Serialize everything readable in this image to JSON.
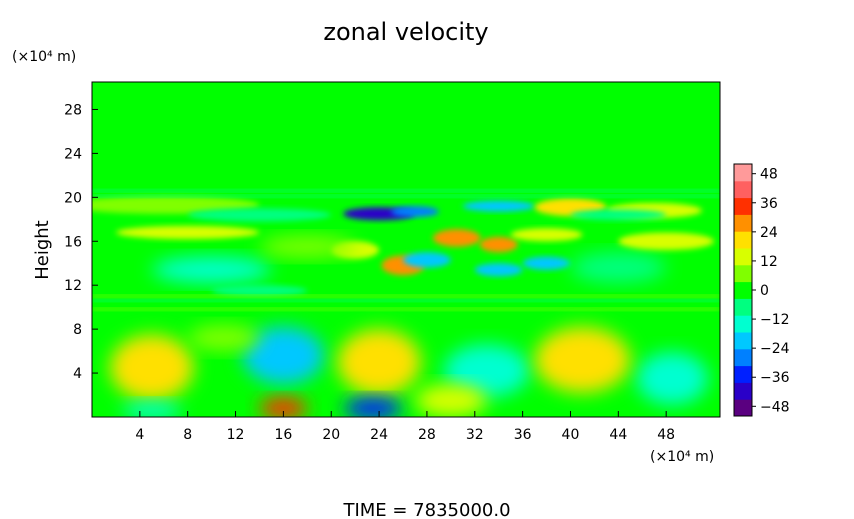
{
  "chart_data": {
    "type": "heatmap",
    "title": "zonal velocity",
    "footer": "TIME = 7835000.0",
    "x_unit": "(×10⁴ m)",
    "y_unit": "(×10⁴ m)",
    "ylabel": "Height",
    "xlabel": "",
    "xlim": [
      0,
      52.5
    ],
    "ylim": [
      0,
      30.5
    ],
    "x_ticks": [
      4,
      8,
      12,
      16,
      20,
      24,
      28,
      32,
      36,
      40,
      44,
      48
    ],
    "y_ticks": [
      4,
      8,
      12,
      16,
      20,
      24,
      28
    ],
    "colorbar": {
      "ticks": [
        48,
        36,
        24,
        12,
        0,
        -12,
        -24,
        -36,
        -48
      ],
      "range": [
        -52,
        52
      ],
      "colors": [
        "#5a0080",
        "#2a00c8",
        "#0020ff",
        "#0080ff",
        "#00c8ff",
        "#00ffd0",
        "#00ff80",
        "#00ff00",
        "#80ff00",
        "#d8ff00",
        "#ffe000",
        "#ff9000",
        "#ff3000",
        "#ff6060",
        "#ff9a9a"
      ]
    },
    "grid": false,
    "legend": "colorbar-right"
  }
}
